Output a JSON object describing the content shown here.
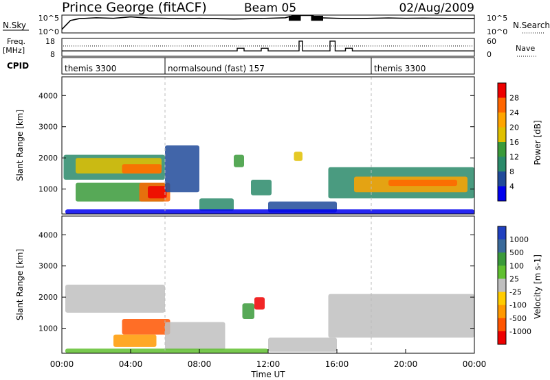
{
  "header": {
    "station": "Prince George (fitACF)",
    "beam": "Beam 05",
    "date": "02/Aug/2009"
  },
  "chart_data": [
    {
      "type": "line",
      "name": "noise",
      "left_label": "N.Sky",
      "right_label": "N.Search",
      "yticks_left": [
        "10^5",
        "10^0"
      ],
      "yticks_right": [
        "10^5",
        "10^0"
      ],
      "x_hours": [
        0,
        0.5,
        1,
        2,
        3,
        4,
        5,
        6,
        7,
        8,
        9,
        10,
        11,
        12,
        13,
        13.5,
        14.5,
        15,
        16,
        17,
        18,
        19,
        20,
        21,
        22,
        23,
        24
      ],
      "sky": [
        0.2,
        0.7,
        0.8,
        0.85,
        0.82,
        0.9,
        0.84,
        0.82,
        0.8,
        0.82,
        0.8,
        0.78,
        0.8,
        0.82,
        0.85,
        0.98,
        0.98,
        0.85,
        0.82,
        0.8,
        0.82,
        0.84,
        0.82,
        0.83,
        0.82,
        0.81,
        0.8
      ]
    },
    {
      "type": "line",
      "name": "frequency",
      "left_label": "Freq.",
      "left_unit": "[MHz]",
      "right_label": "Nave",
      "yticks_left": [
        "18",
        "8"
      ],
      "yticks_right": [
        "60",
        "0"
      ],
      "steps": [
        [
          0,
          0.3
        ],
        [
          6,
          0.3
        ],
        [
          10.2,
          0.45
        ],
        [
          10.6,
          0.3
        ],
        [
          11.6,
          0.45
        ],
        [
          12.0,
          0.3
        ],
        [
          13.8,
          0.85
        ],
        [
          14.0,
          0.3
        ],
        [
          15.6,
          0.85
        ],
        [
          15.9,
          0.3
        ],
        [
          16.5,
          0.45
        ],
        [
          16.9,
          0.3
        ],
        [
          18,
          0.3
        ],
        [
          24,
          0.3
        ]
      ]
    },
    {
      "type": "table",
      "name": "cpid",
      "label": "CPID",
      "segments": [
        {
          "start": 0,
          "end": 6,
          "label": "themis 3300"
        },
        {
          "start": 6,
          "end": 18,
          "label": "normalsound (fast) 157"
        },
        {
          "start": 18,
          "end": 24,
          "label": "themis 3300"
        }
      ]
    },
    {
      "type": "heatmap",
      "name": "power",
      "ylabel": "Slant Range [km]",
      "yticks": [
        1000,
        2000,
        3000,
        4000
      ],
      "ylim": [
        200,
        4600
      ],
      "colorbar_label": "Power [dB]",
      "colorbar_ticks": [
        "28",
        "24",
        "20",
        "16",
        "12",
        "8",
        "4"
      ],
      "colorbar_colors": [
        "#ee0000",
        "#ff6600",
        "#ffa500",
        "#e0c000",
        "#3a9a3a",
        "#2a8a6a",
        "#204a9a",
        "#0000ee"
      ]
    },
    {
      "type": "heatmap",
      "name": "velocity",
      "ylabel": "Slant Range [km]",
      "yticks": [
        1000,
        2000,
        3000,
        4000
      ],
      "ylim": [
        200,
        4600
      ],
      "colorbar_label": "Velocity [m s-1]",
      "colorbar_ticks": [
        "1000",
        "500",
        "100",
        "25",
        "-25",
        "-100",
        "-500",
        "-1000"
      ],
      "colorbar_colors": [
        "#2040c0",
        "#3a6a9a",
        "#3a9a3a",
        "#60c030",
        "#bfbfbf",
        "#ffcc00",
        "#ff9900",
        "#ff5500",
        "#ee0000"
      ],
      "xlabel": "Time UT",
      "xticks": [
        "00:00",
        "04:00",
        "08:00",
        "12:00",
        "16:00",
        "20:00",
        "00:00"
      ]
    }
  ]
}
